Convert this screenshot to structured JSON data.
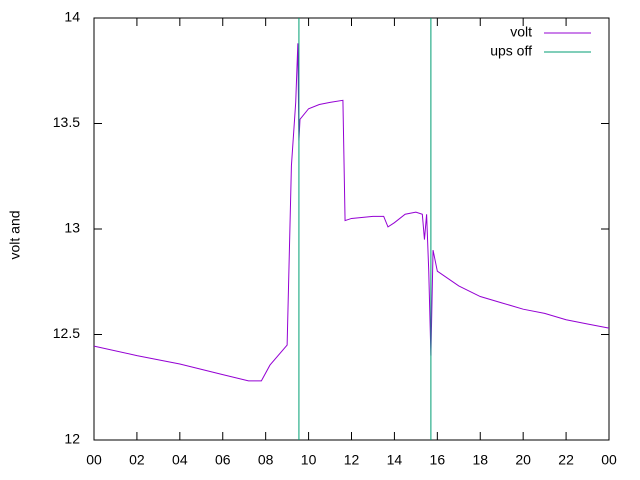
{
  "chart_data": {
    "type": "line",
    "ylabel": "volt and",
    "xlim": [
      0,
      24
    ],
    "ylim": [
      12,
      14
    ],
    "xticks": [
      {
        "value": 0,
        "label": "00"
      },
      {
        "value": 2,
        "label": "02"
      },
      {
        "value": 4,
        "label": "04"
      },
      {
        "value": 6,
        "label": "06"
      },
      {
        "value": 8,
        "label": "08"
      },
      10,
      12,
      14,
      16,
      18,
      20,
      22,
      {
        "value": 24,
        "label": "00"
      }
    ],
    "yticks": [
      12,
      12.5,
      13,
      13.5,
      14
    ],
    "legend": "top-right",
    "series": [
      {
        "name": "volt",
        "color": "#9400d3",
        "x": [
          0,
          2,
          4,
          6,
          7.2,
          7.8,
          8.2,
          9.0,
          9.2,
          9.4,
          9.5,
          9.55,
          9.6,
          10.0,
          10.5,
          11.0,
          11.6,
          11.7,
          12.0,
          13.0,
          13.5,
          13.7,
          14.0,
          14.5,
          15.0,
          15.3,
          15.4,
          15.5,
          15.6,
          15.7,
          15.8,
          16.0,
          17,
          18,
          19,
          20,
          21,
          22,
          23,
          24
        ],
        "values": [
          12.445,
          12.4,
          12.36,
          12.31,
          12.28,
          12.28,
          12.355,
          12.45,
          13.3,
          13.6,
          13.88,
          13.42,
          13.52,
          13.57,
          13.59,
          13.6,
          13.61,
          13.04,
          13.05,
          13.06,
          13.06,
          13.01,
          13.03,
          13.07,
          13.08,
          13.07,
          12.95,
          13.07,
          12.8,
          12.4,
          12.9,
          12.8,
          12.73,
          12.68,
          12.65,
          12.62,
          12.6,
          12.57,
          12.55,
          12.53
        ]
      },
      {
        "name": "ups off",
        "color": "#009e73",
        "type": "vline",
        "x": [
          9.55,
          15.7
        ]
      }
    ]
  }
}
